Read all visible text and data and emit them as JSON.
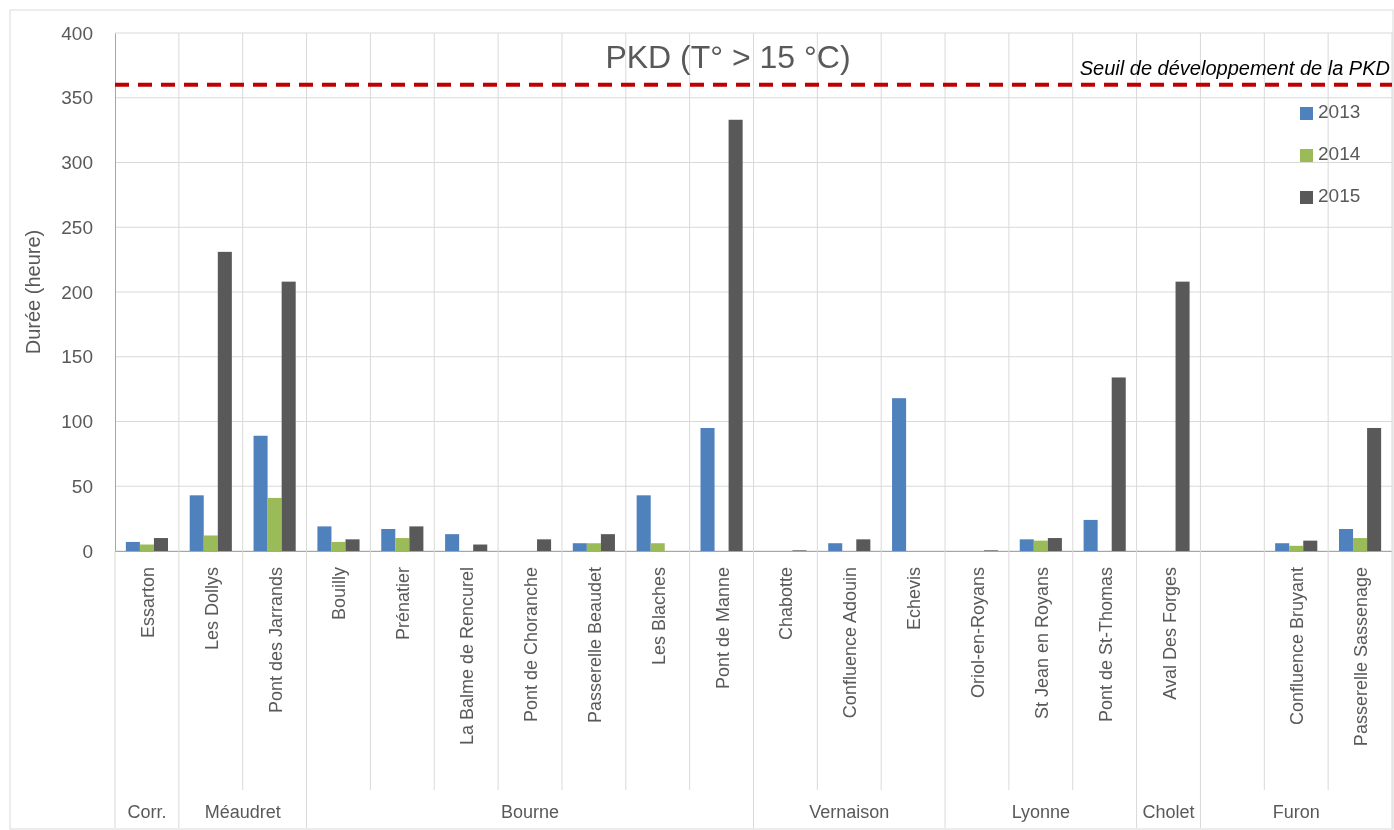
{
  "chart_data": {
    "type": "bar",
    "title": "PKD (T° > 15 °C)",
    "ylabel": "Durée (heure)",
    "categories": [
      "Essarton",
      "Les Dollys",
      "Pont des Jarrands",
      "Bouilly",
      "Prénatier",
      "La Balme de Rencurel",
      "Pont de Choranche",
      "Passerelle Beaudet",
      "Les Blaches",
      "Pont de Manne",
      "Chabotte",
      "Confluence Adouin",
      "Echevis",
      "Oriol-en-Royans",
      "St Jean en Royans",
      "Pont de St-Thomas",
      "Aval Des Forges",
      null,
      "Confluence Bruyant",
      "Passerelle Sassenage"
    ],
    "series": [
      {
        "name": "2013",
        "color": "#4f81bd",
        "values": [
          7,
          43,
          89,
          19,
          17,
          13,
          0,
          6,
          43,
          95,
          0,
          6,
          118,
          0,
          9,
          24,
          0,
          0,
          6,
          17
        ]
      },
      {
        "name": "2014",
        "color": "#9bbb59",
        "values": [
          5,
          12,
          41,
          7,
          10,
          0,
          0,
          6,
          6,
          0,
          0,
          0,
          0,
          0,
          8,
          0,
          0,
          0,
          4,
          10
        ]
      },
      {
        "name": "2015",
        "color": "#595959",
        "values": [
          10,
          231,
          208,
          9,
          19,
          5,
          9,
          13,
          0,
          333,
          0.5,
          9,
          0,
          0.5,
          10,
          134,
          208,
          0,
          8,
          95
        ]
      }
    ],
    "ylim": [
      0,
      400
    ],
    "yticks": [
      0,
      50,
      100,
      150,
      200,
      250,
      300,
      350,
      400
    ],
    "grid": true,
    "legend": "top right",
    "ref_lines": [
      {
        "axis": "y",
        "value": 360,
        "label": "Seuil de développement de la PKD",
        "color": "#c00000",
        "line_style": "dashed"
      }
    ],
    "annotations": [
      "Corr.",
      "Méaudret",
      "Bourne",
      "Vernaison",
      "Lyonne",
      "Cholet",
      "Furon"
    ]
  }
}
